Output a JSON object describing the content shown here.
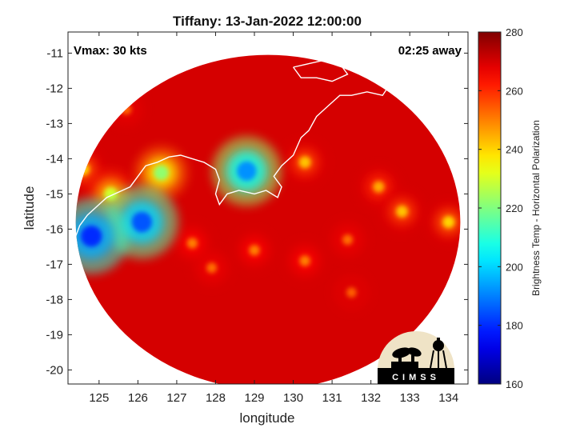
{
  "chart_data": {
    "type": "heatmap",
    "title": "Tiffany: 13-Jan-2022 12:00:00",
    "xlabel": "longitude",
    "ylabel": "latitude",
    "xlim": [
      124.2,
      134.5
    ],
    "ylim": [
      -20.4,
      -10.4
    ],
    "x_ticks": [
      125,
      126,
      127,
      128,
      129,
      130,
      131,
      132,
      133,
      134
    ],
    "y_ticks": [
      -11,
      -12,
      -13,
      -14,
      -15,
      -16,
      -17,
      -18,
      -19,
      -20
    ],
    "colorbar": {
      "label": "Brightness Temp - Horizontal Polarization",
      "min": 160,
      "max": 280,
      "ticks": [
        160,
        180,
        200,
        220,
        240,
        260,
        280
      ],
      "colormap": "jet"
    },
    "swath": {
      "center_lon": 129.35,
      "center_lat": -15.8,
      "radius_lon": 4.95,
      "radius_lat": 4.75
    },
    "features": [
      {
        "name": "cold core south coast",
        "lon": 126.1,
        "lat": -15.8,
        "value": 185
      },
      {
        "name": "cold core west",
        "lon": 124.8,
        "lat": -16.2,
        "value": 180
      },
      {
        "name": "cold core north",
        "lon": 128.8,
        "lat": -14.35,
        "value": 192
      },
      {
        "name": "cell 126.6E",
        "lon": 126.6,
        "lat": -14.4,
        "value": 222
      },
      {
        "name": "cell 125.3E",
        "lon": 125.3,
        "lat": -15.0,
        "value": 230
      },
      {
        "name": "cell 124.6E",
        "lon": 124.6,
        "lat": -14.3,
        "value": 240
      },
      {
        "name": "cell 130.3E",
        "lon": 130.3,
        "lat": -14.1,
        "value": 242
      },
      {
        "name": "cell 132.2E",
        "lon": 132.2,
        "lat": -14.8,
        "value": 245
      },
      {
        "name": "cell 132.8E",
        "lon": 132.8,
        "lat": -15.5,
        "value": 242
      },
      {
        "name": "cell 134.0E",
        "lon": 134.0,
        "lat": -15.8,
        "value": 240
      },
      {
        "name": "band 129E",
        "lon": 129.0,
        "lat": -16.6,
        "value": 250
      },
      {
        "name": "band 130E",
        "lon": 130.3,
        "lat": -16.9,
        "value": 250
      },
      {
        "name": "band 131E",
        "lon": 131.4,
        "lat": -16.3,
        "value": 252
      },
      {
        "name": "band 128E",
        "lon": 127.9,
        "lat": -17.1,
        "value": 252
      },
      {
        "name": "patch NW",
        "lon": 125.7,
        "lat": -12.6,
        "value": 253
      },
      {
        "name": "patch 127E",
        "lon": 127.4,
        "lat": -16.4,
        "value": 250
      },
      {
        "name": "patch 131.5E",
        "lon": 131.5,
        "lat": -17.8,
        "value": 254
      }
    ],
    "coastline": [
      [
        [
          124.1,
          -16.4
        ],
        [
          124.4,
          -16.2
        ],
        [
          124.5,
          -15.9
        ],
        [
          124.7,
          -15.6
        ],
        [
          125.0,
          -15.3
        ],
        [
          125.2,
          -15.1
        ],
        [
          125.4,
          -15.0
        ],
        [
          125.6,
          -14.9
        ],
        [
          125.8,
          -14.8
        ],
        [
          126.0,
          -14.5
        ],
        [
          126.2,
          -14.2
        ],
        [
          126.5,
          -14.1
        ],
        [
          126.8,
          -13.95
        ],
        [
          127.1,
          -13.9
        ],
        [
          127.4,
          -14.0
        ],
        [
          127.7,
          -14.1
        ],
        [
          128.0,
          -14.3
        ],
        [
          128.1,
          -14.6
        ],
        [
          128.0,
          -15.0
        ],
        [
          128.1,
          -15.3
        ],
        [
          128.3,
          -15.0
        ],
        [
          128.6,
          -14.9
        ],
        [
          129.0,
          -15.0
        ],
        [
          129.3,
          -14.9
        ],
        [
          129.6,
          -15.1
        ],
        [
          129.7,
          -14.8
        ],
        [
          129.5,
          -14.5
        ],
        [
          129.7,
          -14.2
        ],
        [
          130.0,
          -13.9
        ],
        [
          130.2,
          -13.4
        ],
        [
          130.4,
          -13.2
        ],
        [
          130.6,
          -12.8
        ],
        [
          130.9,
          -12.5
        ],
        [
          131.2,
          -12.2
        ],
        [
          131.5,
          -12.2
        ],
        [
          131.9,
          -12.1
        ],
        [
          132.3,
          -12.2
        ],
        [
          132.6,
          -11.7
        ],
        [
          132.9,
          -11.4
        ],
        [
          133.3,
          -11.6
        ],
        [
          133.7,
          -11.8
        ],
        [
          134.0,
          -12.0
        ],
        [
          134.5,
          -12.0
        ]
      ],
      [
        [
          130.0,
          -11.4
        ],
        [
          130.4,
          -11.3
        ],
        [
          130.8,
          -11.2
        ],
        [
          131.2,
          -11.3
        ],
        [
          131.4,
          -11.6
        ],
        [
          131.0,
          -11.8
        ],
        [
          130.6,
          -11.7
        ],
        [
          130.2,
          -11.7
        ],
        [
          130.0,
          -11.4
        ]
      ]
    ]
  },
  "annotations": {
    "vmax": "Vmax: 30 kts",
    "away": "02:25 away"
  },
  "logo": {
    "text": "CIMSS"
  }
}
